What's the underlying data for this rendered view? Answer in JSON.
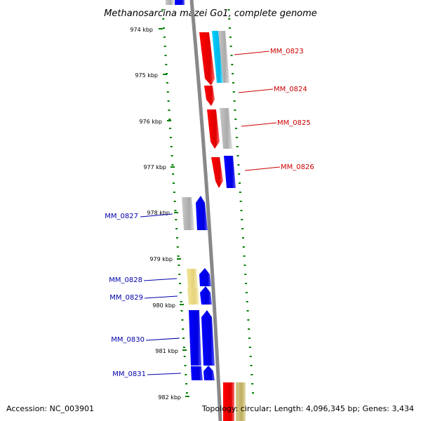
{
  "title": "Methanosarcina mazei Go1, complete genome",
  "footer": {
    "accession": "Accession: NC_003901",
    "summary": "Topology: circular; Length: 4,096,345 bp; Genes: 3,434"
  },
  "ticks": [
    "974 kbp",
    "975 kbp",
    "976 kbp",
    "977 kbp",
    "978 kbp",
    "979 kbp",
    "980 kbp",
    "981 kbp",
    "982 kbp"
  ],
  "genes_forward": [
    {
      "label": "MM_0823",
      "color": "#cc0000"
    },
    {
      "label": "MM_0824",
      "color": "#cc0000"
    },
    {
      "label": "MM_0825",
      "color": "#cc0000"
    },
    {
      "label": "MM_0826",
      "color": "#cc0000"
    }
  ],
  "genes_reverse": [
    {
      "label": "MM_0827",
      "color": "#0000aa"
    },
    {
      "label": "MM_0828",
      "color": "#0000aa"
    },
    {
      "label": "MM_0829",
      "color": "#0000aa"
    },
    {
      "label": "MM_0830",
      "color": "#0000aa"
    },
    {
      "label": "MM_0831",
      "color": "#0000aa"
    }
  ],
  "colors": {
    "red": "#ff0000",
    "blue": "#0000ff",
    "gray": "#b3b3b3",
    "cyan": "#00ccff",
    "khaki": "#eee08a",
    "olive": "#c8b96a",
    "backbone": "#888888",
    "ticks": "#008000"
  }
}
